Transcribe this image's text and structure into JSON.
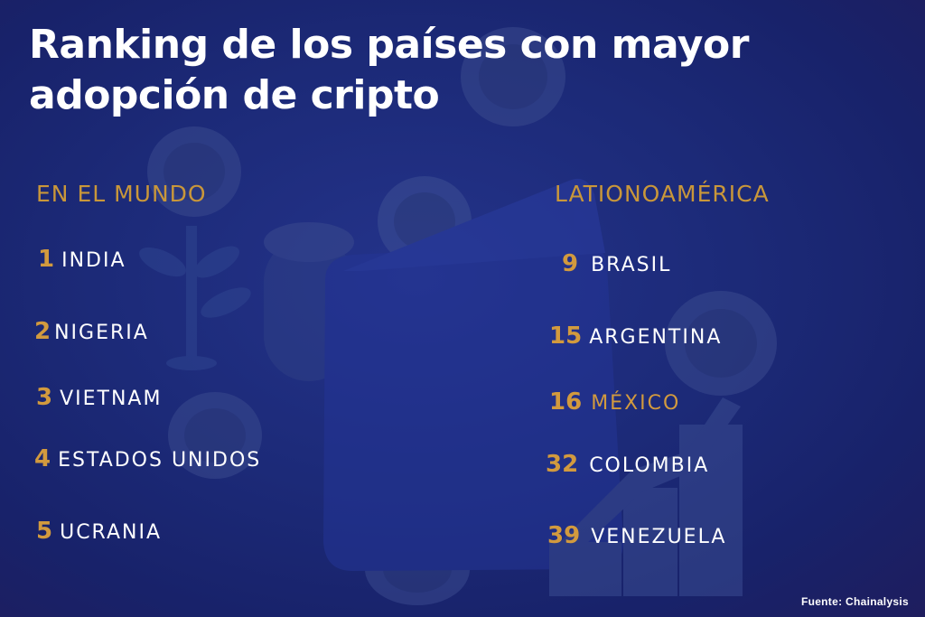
{
  "title": "Ranking de los países con mayor adopción de cripto",
  "world": {
    "heading": "EN EL MUNDO",
    "items": [
      {
        "rank": "1",
        "name": "INDIA"
      },
      {
        "rank": "2",
        "name": "NIGERIA"
      },
      {
        "rank": "3",
        "name": "VIETNAM"
      },
      {
        "rank": "4",
        "name": "ESTADOS UNIDOS"
      },
      {
        "rank": "5",
        "name": "UCRANIA"
      }
    ]
  },
  "latam": {
    "heading": "LATIONOAMÉRICA",
    "items": [
      {
        "rank": "9",
        "name": "BRASIL"
      },
      {
        "rank": "15",
        "name": "ARGENTINA"
      },
      {
        "rank": "16",
        "name": "MÉXICO"
      },
      {
        "rank": "32",
        "name": "COLOMBIA"
      },
      {
        "rank": "39",
        "name": "VENEZUELA"
      }
    ]
  },
  "source": "Fuente:  Chainalysis",
  "colors": {
    "background": "#1c2a78",
    "accent": "#d29a3e",
    "text": "#ffffff",
    "highlight": "#d29a3e"
  },
  "icons": [
    "coin-icon",
    "wallet-icon",
    "plant-icon",
    "growth-chart-icon"
  ]
}
